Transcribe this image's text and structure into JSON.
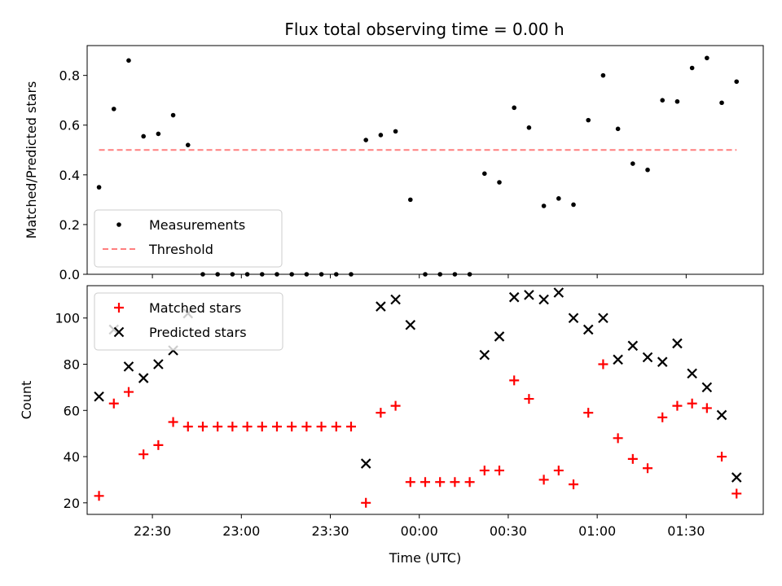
{
  "title": "Flux total observing time = 0.00 h",
  "chart_data": [
    {
      "type": "scatter",
      "ylabel": "Matched/Predicted stars",
      "ylim": [
        0,
        0.92
      ],
      "yticks": [
        0.0,
        0.2,
        0.4,
        0.6,
        0.8
      ],
      "ytick_labels": [
        "0.0",
        "0.2",
        "0.4",
        "0.6",
        "0.8"
      ],
      "xlim": [
        "22:08",
        "01:56"
      ],
      "xticks": [
        "22:30",
        "23:00",
        "23:30",
        "00:00",
        "00:30",
        "01:00",
        "01:30"
      ],
      "xtick_labels": [
        "",
        "",
        "",
        "",
        "",
        "",
        ""
      ],
      "legend_position": "lower-left",
      "series": [
        {
          "name": "Measurements",
          "kind": "points",
          "color": "#000000",
          "x": [
            "22:12",
            "22:17",
            "22:22",
            "22:27",
            "22:32",
            "22:37",
            "22:42",
            "22:47",
            "22:52",
            "22:57",
            "23:02",
            "23:07",
            "23:12",
            "23:17",
            "23:22",
            "23:27",
            "23:32",
            "23:37",
            "23:42",
            "23:47",
            "23:52",
            "23:57",
            "00:02",
            "00:07",
            "00:12",
            "00:17",
            "00:22",
            "00:27",
            "00:32",
            "00:37",
            "00:42",
            "00:47",
            "00:52",
            "00:57",
            "01:02",
            "01:07",
            "01:12",
            "01:17",
            "01:22",
            "01:27",
            "01:32",
            "01:37",
            "01:42",
            "01:47"
          ],
          "y": [
            0.35,
            0.665,
            0.86,
            0.555,
            0.565,
            0.64,
            0.52,
            0.0,
            0.0,
            0.0,
            0.0,
            0.0,
            0.0,
            0.0,
            0.0,
            0.0,
            0.0,
            0.0,
            0.54,
            0.56,
            0.575,
            0.3,
            0.0,
            0.0,
            0.0,
            0.0,
            0.405,
            0.37,
            0.67,
            0.59,
            0.275,
            0.305,
            0.28,
            0.62,
            0.8,
            0.585,
            0.445,
            0.42,
            0.7,
            0.695,
            0.83,
            0.87,
            0.69,
            0.775
          ]
        },
        {
          "name": "Threshold",
          "kind": "dashed-line",
          "color": "#ff7f7f",
          "x": [
            "22:12",
            "01:47"
          ],
          "y": [
            0.5,
            0.5
          ]
        }
      ]
    },
    {
      "type": "scatter",
      "ylabel": "Count",
      "xlabel": "Time (UTC)",
      "ylim": [
        15,
        114
      ],
      "yticks": [
        20,
        40,
        60,
        80,
        100
      ],
      "ytick_labels": [
        "20",
        "40",
        "60",
        "80",
        "100"
      ],
      "xlim": [
        "22:08",
        "01:56"
      ],
      "xticks": [
        "22:30",
        "23:00",
        "23:30",
        "00:00",
        "00:30",
        "01:00",
        "01:30"
      ],
      "xtick_labels": [
        "22:30",
        "23:00",
        "23:30",
        "00:00",
        "00:30",
        "01:00",
        "01:30"
      ],
      "legend_position": "upper-left",
      "series": [
        {
          "name": "Matched stars",
          "marker": "plus",
          "color": "#ff0000",
          "x": [
            "22:12",
            "22:17",
            "22:22",
            "22:27",
            "22:32",
            "22:37",
            "22:42",
            "22:47",
            "22:52",
            "22:57",
            "23:02",
            "23:07",
            "23:12",
            "23:17",
            "23:22",
            "23:27",
            "23:32",
            "23:37",
            "23:42",
            "23:47",
            "23:52",
            "23:57",
            "00:02",
            "00:07",
            "00:12",
            "00:17",
            "00:22",
            "00:27",
            "00:32",
            "00:37",
            "00:42",
            "00:47",
            "00:52",
            "00:57",
            "01:02",
            "01:07",
            "01:12",
            "01:17",
            "01:22",
            "01:27",
            "01:32",
            "01:37",
            "01:42",
            "01:47"
          ],
          "y": [
            23,
            63,
            68,
            41,
            45,
            55,
            53,
            53,
            53,
            53,
            53,
            53,
            53,
            53,
            53,
            53,
            53,
            53,
            20,
            59,
            62,
            29,
            29,
            29,
            29,
            29,
            34,
            34,
            73,
            65,
            30,
            34,
            28,
            59,
            80,
            48,
            39,
            35,
            57,
            62,
            63,
            61,
            40,
            24
          ]
        },
        {
          "name": "Predicted stars",
          "marker": "cross",
          "color": "#000000",
          "x": [
            "22:12",
            "22:17",
            "22:22",
            "22:27",
            "22:32",
            "22:37",
            "22:42",
            "23:42",
            "23:47",
            "23:52",
            "23:57",
            "00:22",
            "00:27",
            "00:32",
            "00:37",
            "00:42",
            "00:47",
            "00:52",
            "00:57",
            "01:02",
            "01:07",
            "01:12",
            "01:17",
            "01:22",
            "01:27",
            "01:32",
            "01:37",
            "01:42",
            "01:47"
          ],
          "y": [
            66,
            95,
            79,
            74,
            80,
            86,
            102,
            37,
            105,
            108,
            97,
            84,
            92,
            109,
            110,
            108,
            111,
            100,
            95,
            100,
            82,
            88,
            83,
            81,
            89,
            76,
            70,
            58,
            31
          ]
        }
      ]
    }
  ]
}
